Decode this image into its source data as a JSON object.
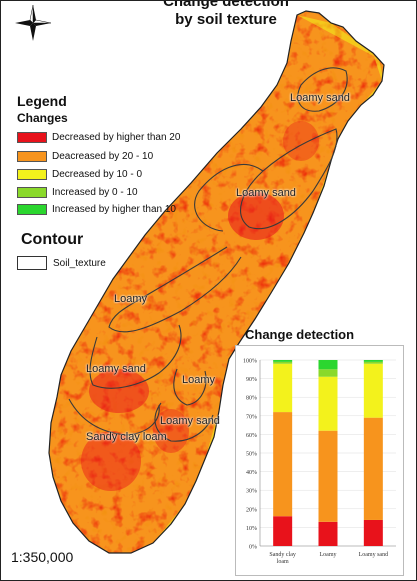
{
  "title": {
    "line1": "Change detection",
    "line2": "by soil texture"
  },
  "legend": {
    "heading": "Legend",
    "changes_heading": "Changes",
    "items": [
      {
        "label": "Decreased by higher than 20",
        "color": "#e8121b"
      },
      {
        "label": "Deacreased by 20 - 10",
        "color": "#f7941d"
      },
      {
        "label": "Decreased by 10 - 0",
        "color": "#f3f21c"
      },
      {
        "label": "Increased by 0 - 10",
        "color": "#8ad92a"
      },
      {
        "label": "Increased by higher than 10",
        "color": "#2bd62f"
      }
    ],
    "contour_heading": "Contour",
    "contour_item": "Soil_texture"
  },
  "map_labels": [
    "Loamy sand",
    "Loamy sand",
    "Loamy",
    "Loamy sand",
    "Loamy",
    "Loamy sand",
    "Sandy clay loam"
  ],
  "scale": "1:350,000",
  "north_arrow": "north-arrow-icon",
  "chart_data": {
    "type": "bar",
    "stacked": true,
    "title": "Change detection",
    "categories": [
      "Sandy clay loam",
      "Loamy",
      "Loamy sand"
    ],
    "y_ticks": [
      "0%",
      "10%",
      "20%",
      "30%",
      "40%",
      "50%",
      "60%",
      "70%",
      "80%",
      "90%",
      "100%"
    ],
    "ylim": [
      0,
      100
    ],
    "series": [
      {
        "color": "#e8121b",
        "values": [
          16,
          13,
          14
        ]
      },
      {
        "color": "#f7941d",
        "values": [
          56,
          49,
          55
        ]
      },
      {
        "color": "#f3f21c",
        "values": [
          26,
          29,
          29
        ]
      },
      {
        "color": "#8ad92a",
        "values": [
          1,
          4,
          1
        ]
      },
      {
        "color": "#2bd62f",
        "values": [
          1,
          5,
          1
        ]
      }
    ]
  }
}
